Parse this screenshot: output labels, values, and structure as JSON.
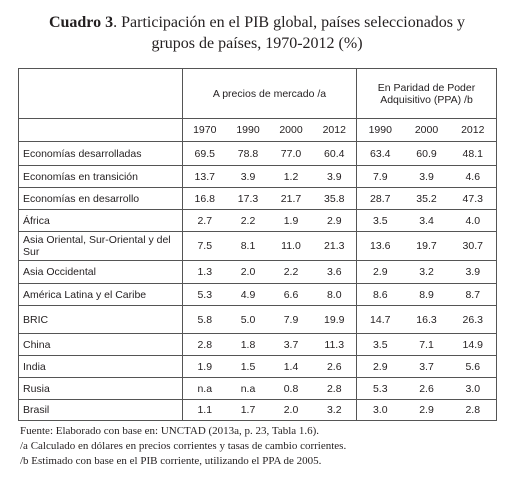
{
  "title": {
    "label": "Cuadro 3",
    "text": ". Participación en el PIB global, países seleccionados y",
    "text2": "grupos de países, 1970-2012 (%)"
  },
  "table": {
    "group_headers": [
      "A precios de mercado /a",
      "En Paridad de Poder Adquisitivo (PPA) /b"
    ],
    "year_headers": [
      "1970",
      "1990",
      "2000",
      "2012",
      "1990",
      "2000",
      "2012"
    ],
    "rows": [
      [
        "Economías desarrolladas",
        "69.5",
        "78.8",
        "77.0",
        "60.4",
        "63.4",
        "60.9",
        "48.1"
      ],
      [
        "Economías en transición",
        "13.7",
        "3.9",
        "1.2",
        "3.9",
        "7.9",
        "3.9",
        "4.6"
      ],
      [
        "Economías en desarrollo",
        "16.8",
        "17.3",
        "21.7",
        "35.8",
        "28.7",
        "35.2",
        "47.3"
      ],
      [
        "África",
        "2.7",
        "2.2",
        "1.9",
        "2.9",
        "3.5",
        "3.4",
        "4.0"
      ],
      [
        "Asia Oriental, Sur-Oriental y del Sur",
        "7.5",
        "8.1",
        "11.0",
        "21.3",
        "13.6",
        "19.7",
        "30.7"
      ],
      [
        "Asia Occidental",
        "1.3",
        "2.0",
        "2.2",
        "3.6",
        "2.9",
        "3.2",
        "3.9"
      ],
      [
        "América Latina y el Caribe",
        "5.3",
        "4.9",
        "6.6",
        "8.0",
        "8.6",
        "8.9",
        "8.7"
      ],
      [
        "BRIC",
        "5.8",
        "5.0",
        "7.9",
        "19.9",
        "14.7",
        "16.3",
        "26.3"
      ],
      [
        "China",
        "2.8",
        "1.8",
        "3.7",
        "11.3",
        "3.5",
        "7.1",
        "14.9"
      ],
      [
        "India",
        "1.9",
        "1.5",
        "1.4",
        "2.6",
        "2.9",
        "3.7",
        "5.6"
      ],
      [
        "Rusia",
        "n.a",
        "n.a",
        "0.8",
        "2.8",
        "5.3",
        "2.6",
        "3.0"
      ],
      [
        "Brasil",
        "1.1",
        "1.7",
        "2.0",
        "3.2",
        "3.0",
        "2.9",
        "2.8"
      ]
    ]
  },
  "notes": [
    "Fuente: Elaborado con base en: UNCTAD (2013a, p. 23, Tabla 1.6).",
    "/a Calculado en dólares en precios corrientes y tasas de cambio corrientes.",
    "/b Estimado con base en el PIB corriente, utilizando el PPA de 2005."
  ]
}
